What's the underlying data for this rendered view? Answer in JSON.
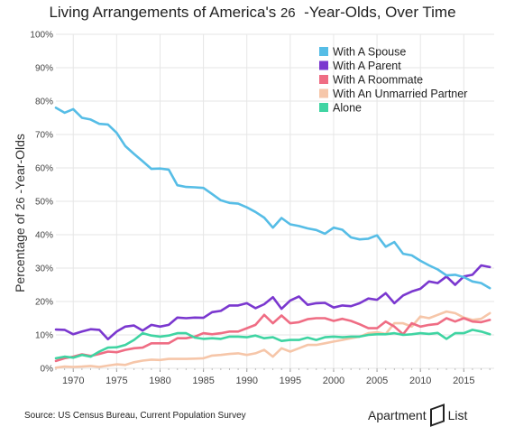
{
  "title": {
    "prefix": "Living Arrangements of America's ",
    "age": "26",
    "suffix": "  -Year-Olds, Over Time"
  },
  "ylabel": {
    "prefix": "Percentage of ",
    "age": "26",
    "suffix": " -Year-Olds"
  },
  "source": "Source: US Census Bureau, Current Population Survey",
  "brand": {
    "part1": "Apartment",
    "part2": "List"
  },
  "chart_data": {
    "type": "line",
    "xlim": [
      1968,
      2018.5
    ],
    "ylim": [
      0,
      100
    ],
    "x_ticks": [
      1970,
      1975,
      1980,
      1985,
      1990,
      1995,
      2000,
      2005,
      2010,
      2015
    ],
    "y_ticks": [
      "0%",
      "10%",
      "20%",
      "30%",
      "40%",
      "50%",
      "60%",
      "70%",
      "80%",
      "90%",
      "100%"
    ],
    "y_tick_values": [
      0,
      10,
      20,
      30,
      40,
      50,
      60,
      70,
      80,
      90,
      100
    ],
    "grid": true,
    "legend_position": "top-right",
    "x": [
      1968,
      1969,
      1970,
      1971,
      1972,
      1973,
      1974,
      1975,
      1976,
      1977,
      1978,
      1979,
      1980,
      1981,
      1982,
      1983,
      1984,
      1985,
      1986,
      1987,
      1988,
      1989,
      1990,
      1991,
      1992,
      1993,
      1994,
      1995,
      1996,
      1997,
      1998,
      1999,
      2000,
      2001,
      2002,
      2003,
      2004,
      2005,
      2006,
      2007,
      2008,
      2009,
      2010,
      2011,
      2012,
      2013,
      2014,
      2015,
      2016,
      2017,
      2018
    ],
    "series": [
      {
        "name": "With A Spouse",
        "color": "#56bde6",
        "values": [
          78,
          76.5,
          77.6,
          75,
          74.5,
          73.2,
          73,
          70.5,
          66.5,
          64.2,
          62,
          59.7,
          59.8,
          59.5,
          54.8,
          54.3,
          54.2,
          54,
          52.2,
          50.3,
          49.5,
          49.3,
          48.2,
          46.8,
          45.1,
          42.1,
          45,
          43.1,
          42.6,
          41.9,
          41.4,
          40.3,
          42.1,
          41.5,
          39.2,
          38.6,
          38.8,
          39.8,
          36.4,
          37.8,
          34.3,
          33.8,
          32.2,
          30.8,
          29.6,
          27.8,
          28,
          27.3,
          26,
          25.5,
          24
        ]
      },
      {
        "name": "With A Parent",
        "color": "#7a37cf",
        "values": [
          11.6,
          11.5,
          10.2,
          11,
          11.7,
          11.5,
          8.7,
          11,
          12.5,
          12.8,
          11.3,
          13,
          12.5,
          13,
          15.2,
          15,
          15.2,
          15.1,
          16.8,
          17.2,
          18.8,
          18.8,
          19.5,
          18,
          19.2,
          21.3,
          17.8,
          20.3,
          21.5,
          19,
          19.5,
          19.6,
          18.2,
          18.8,
          18.6,
          19.5,
          20.9,
          20.5,
          22.5,
          19.5,
          21.8,
          23,
          23.8,
          26,
          25.5,
          27.5,
          25,
          27.5,
          28,
          30.8,
          30.3
        ]
      },
      {
        "name": "With A Roommate",
        "color": "#ef6d84",
        "values": [
          2.2,
          3,
          3.5,
          4.2,
          3.7,
          4.3,
          5,
          4.8,
          5.5,
          6,
          6.2,
          7.5,
          7.5,
          7.5,
          9,
          9,
          9.5,
          10.5,
          10.2,
          10.5,
          11,
          11,
          12,
          13,
          16,
          13.5,
          15.8,
          13.5,
          13.8,
          14.7,
          15,
          15,
          14.2,
          14.8,
          14.2,
          13.2,
          12,
          12,
          14,
          12.5,
          10.2,
          13.5,
          12.5,
          13,
          13.3,
          15,
          14,
          15,
          14,
          13.8,
          14.5
        ]
      },
      {
        "name": "With An Unmarried Partner",
        "color": "#f6c6a9",
        "values": [
          0.2,
          0.5,
          0.4,
          0.5,
          0.7,
          0.4,
          0.8,
          1.2,
          1,
          1.8,
          2.3,
          2.6,
          2.5,
          2.8,
          2.8,
          2.8,
          2.9,
          3,
          3.8,
          4,
          4.3,
          4.5,
          4,
          4.5,
          5.5,
          3.5,
          6,
          5,
          6,
          7,
          7,
          7.5,
          8,
          8.5,
          9,
          9.5,
          10.5,
          10.8,
          10.3,
          13.5,
          13.5,
          12.5,
          15.5,
          15,
          16,
          17,
          16.5,
          15.2,
          14.5,
          14.8,
          16.5
        ]
      },
      {
        "name": "Alone",
        "color": "#3fd4a2",
        "values": [
          3,
          3.5,
          3.2,
          4,
          3.5,
          5,
          6.2,
          6.3,
          7,
          8.5,
          10.5,
          9.8,
          9.5,
          9.8,
          10.5,
          10.5,
          9.2,
          8.8,
          9,
          8.8,
          9.5,
          9.5,
          9.3,
          9.8,
          9,
          9.3,
          8.2,
          8.5,
          8.5,
          9.2,
          8.5,
          9.3,
          9.5,
          9.3,
          9.5,
          9.5,
          10,
          10.2,
          10.2,
          10.5,
          10,
          10.2,
          10.5,
          10.3,
          10.6,
          8.8,
          10.5,
          10.5,
          11.5,
          11,
          10.2
        ]
      }
    ]
  }
}
